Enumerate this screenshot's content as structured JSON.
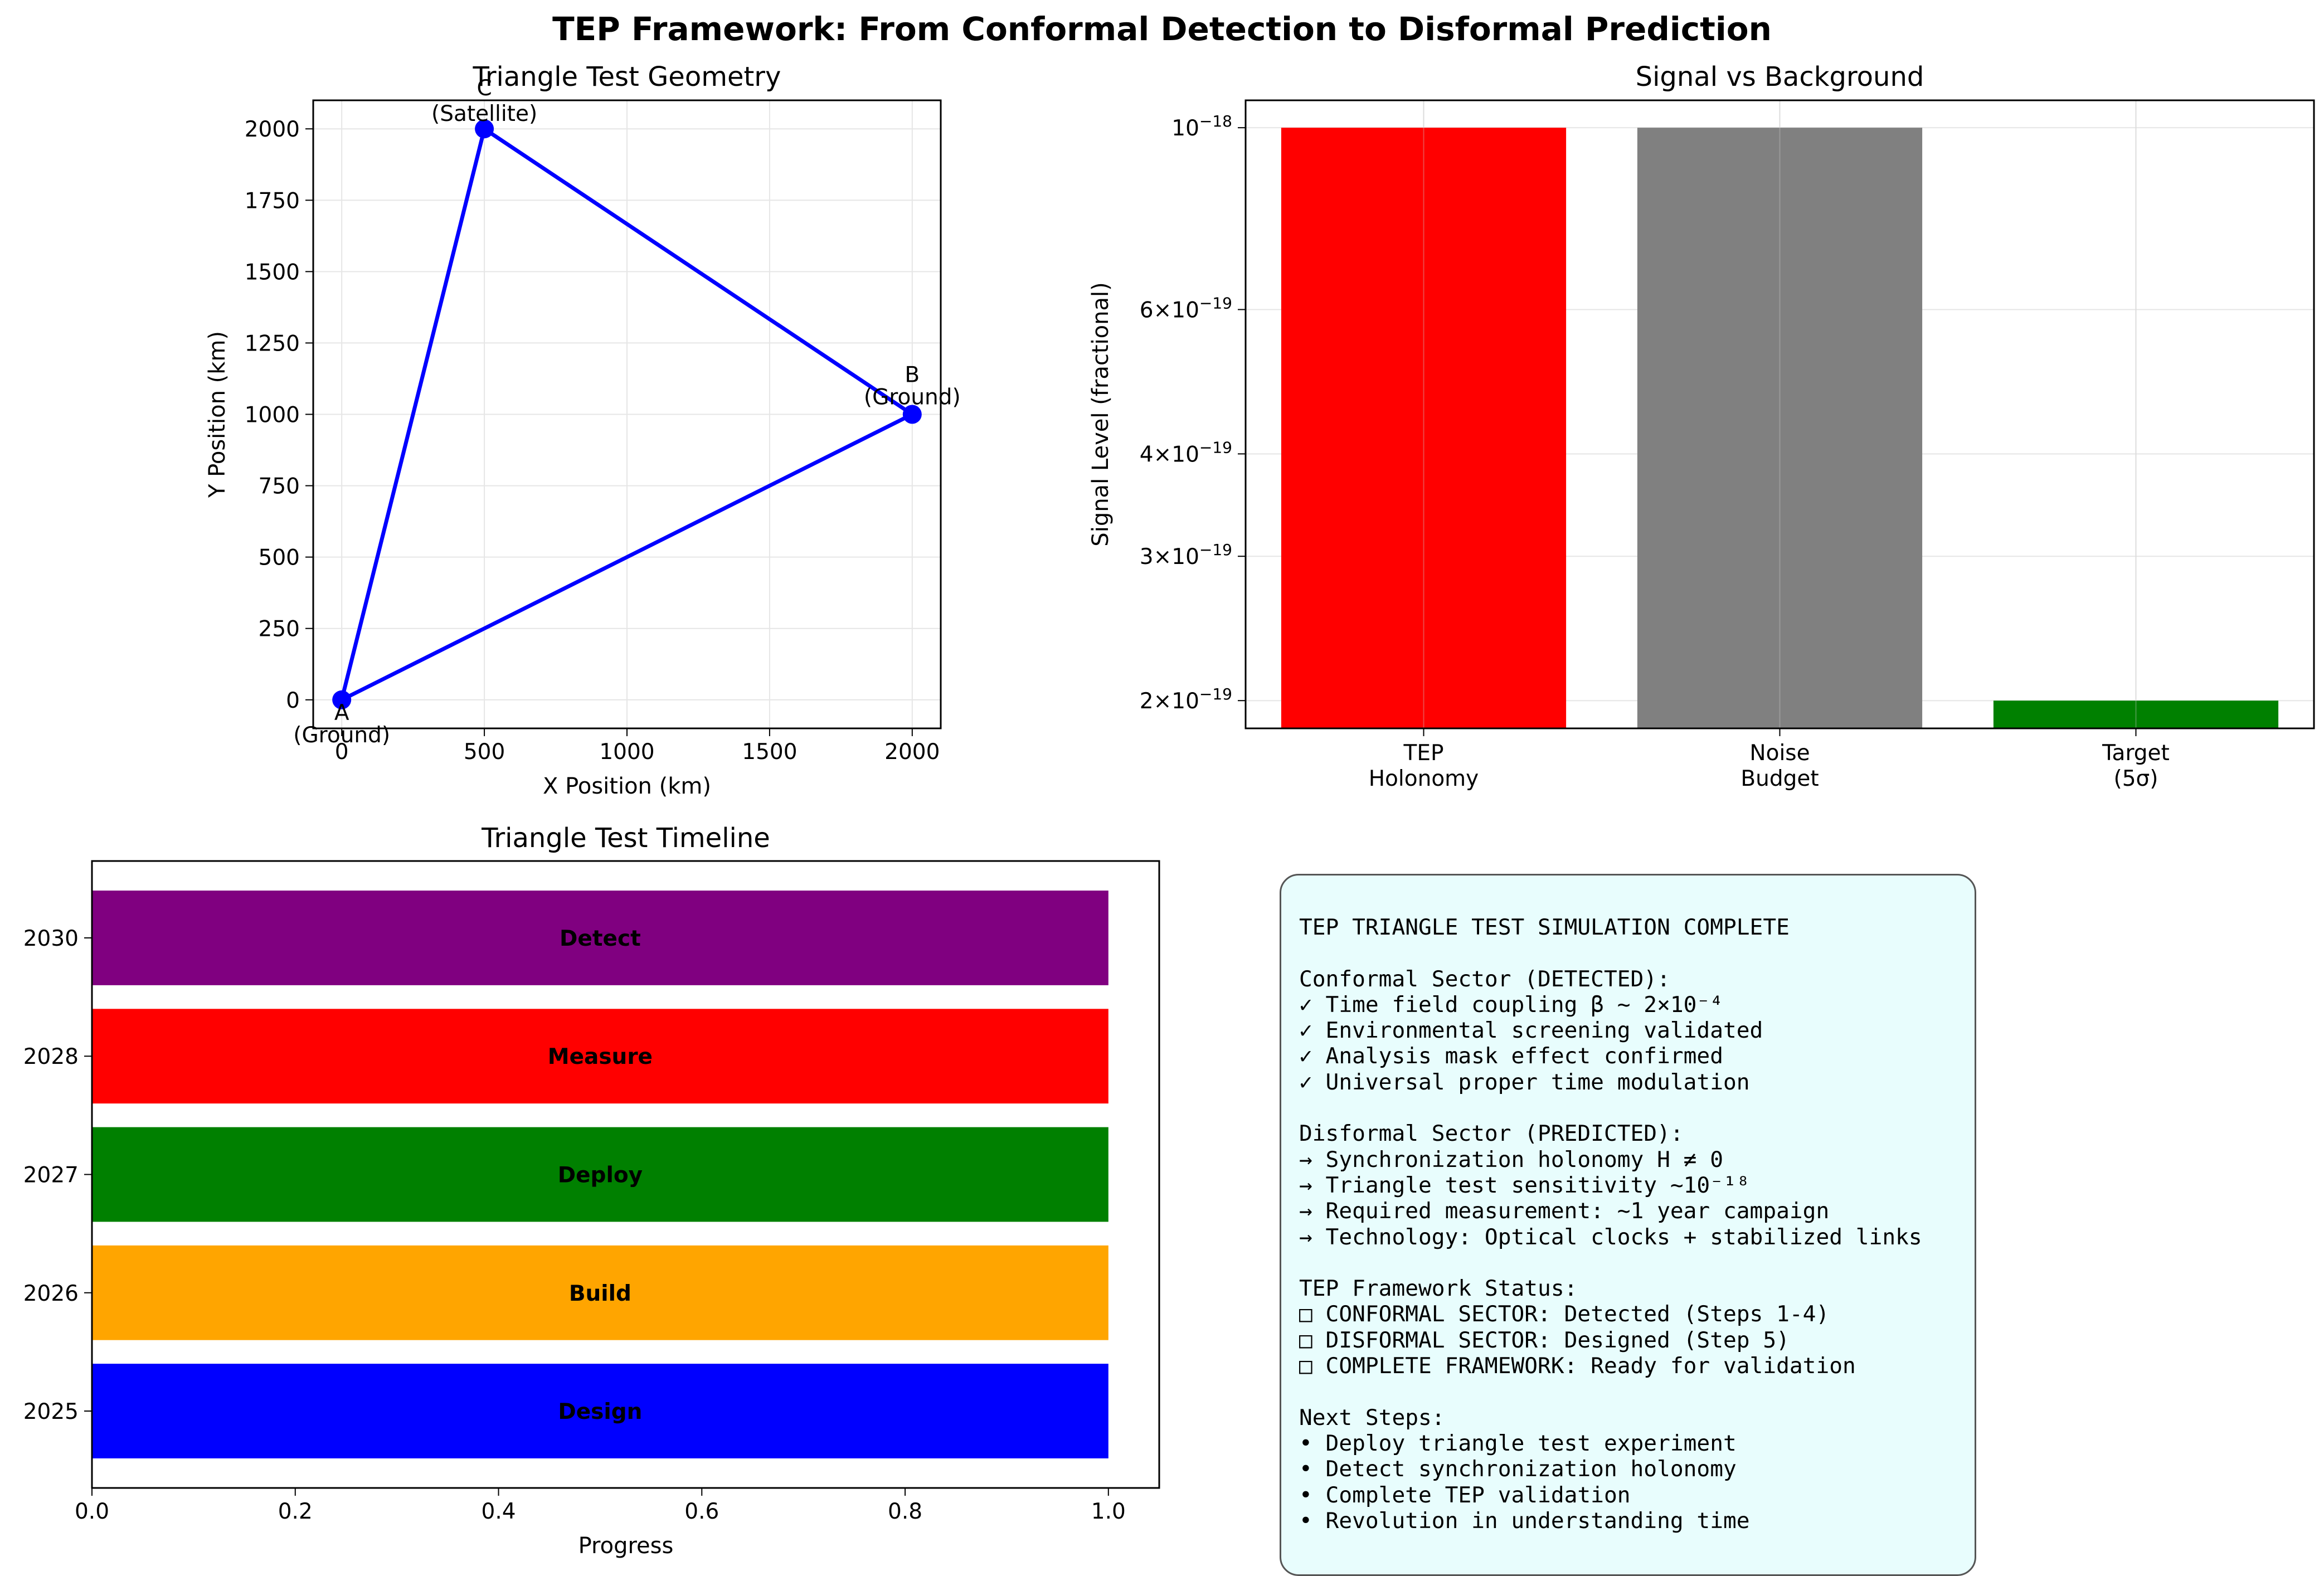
{
  "figure_title": "TEP Framework: From Conformal Detection to Disformal Prediction",
  "chart_data": [
    {
      "type": "scatter",
      "title": "Triangle Test Geometry",
      "xlabel": "X Position (km)",
      "ylabel": "Y Position (km)",
      "xlim": [
        -100,
        2100
      ],
      "ylim": [
        -100,
        2100
      ],
      "xticks": [
        "0",
        "500",
        "1000",
        "1500",
        "2000"
      ],
      "xtick_values": [
        0,
        500,
        1000,
        1500,
        2000
      ],
      "yticks": [
        "0",
        "250",
        "500",
        "750",
        "1000",
        "1250",
        "1500",
        "1750",
        "2000"
      ],
      "ytick_values": [
        0,
        250,
        500,
        750,
        1000,
        1250,
        1500,
        1750,
        2000
      ],
      "grid": true,
      "line_color": "#0000ff",
      "points": [
        {
          "x": 0,
          "y": 0,
          "label": "A",
          "sub": "(Ground)"
        },
        {
          "x": 2000,
          "y": 1000,
          "label": "B",
          "sub": "(Ground)"
        },
        {
          "x": 500,
          "y": 2000,
          "label": "C",
          "sub": "(Satellite)"
        }
      ]
    },
    {
      "type": "bar",
      "title": "Signal vs Background",
      "ylabel": "Signal Level (fractional)",
      "yscale": "log",
      "ylim": [
        1.85e-19,
        1.08e-18
      ],
      "grid": true,
      "yticks": [
        {
          "value": 1e-18,
          "mant": "",
          "exp": "−18"
        },
        {
          "value": 6e-19,
          "mant": "6",
          "exp": "−19"
        },
        {
          "value": 4e-19,
          "mant": "4",
          "exp": "−19"
        },
        {
          "value": 3e-19,
          "mant": "3",
          "exp": "−19"
        },
        {
          "value": 2e-19,
          "mant": "2",
          "exp": "−19"
        }
      ],
      "categories": [
        [
          "TEP",
          "Holonomy"
        ],
        [
          "Noise",
          "Budget"
        ],
        [
          "Target",
          "(5σ)"
        ]
      ],
      "values": [
        1e-18,
        1e-18,
        2e-19
      ],
      "colors": [
        "#ff0000",
        "#808080",
        "#008000"
      ]
    },
    {
      "type": "bar",
      "orientation": "horizontal",
      "title": "Triangle Test Timeline",
      "xlabel": "Progress",
      "xlim": [
        0,
        1.05
      ],
      "xticks": [
        "0.0",
        "0.2",
        "0.4",
        "0.6",
        "0.8",
        "1.0"
      ],
      "xtick_values": [
        0,
        0.2,
        0.4,
        0.6,
        0.8,
        1.0
      ],
      "categories": [
        "2025",
        "2026",
        "2027",
        "2028",
        "2030"
      ],
      "labels": [
        "Design",
        "Build",
        "Deploy",
        "Measure",
        "Detect"
      ],
      "values": [
        1,
        1,
        1,
        1,
        1
      ],
      "colors": [
        "#0000ff",
        "#ffa500",
        "#008000",
        "#ff0000",
        "#800080"
      ]
    }
  ],
  "status_box": {
    "lines": [
      "TEP TRIANGLE TEST SIMULATION COMPLETE",
      "",
      "Conformal Sector (DETECTED):",
      "✓ Time field coupling β ~ 2×10⁻⁴",
      "✓ Environmental screening validated",
      "✓ Analysis mask effect confirmed",
      "✓ Universal proper time modulation",
      "",
      "Disformal Sector (PREDICTED):",
      "→ Synchronization holonomy H ≠ 0",
      "→ Triangle test sensitivity ~10⁻¹⁸",
      "→ Required measurement: ~1 year campaign",
      "→ Technology: Optical clocks + stabilized links",
      "",
      "TEP Framework Status:",
      "□ CONFORMAL SECTOR: Detected (Steps 1-4)",
      "□ DISFORMAL SECTOR: Designed (Step 5)",
      "□ COMPLETE FRAMEWORK: Ready for validation",
      "",
      "Next Steps:",
      "• Deploy triangle test experiment",
      "• Detect synchronization holonomy",
      "• Complete TEP validation",
      "• Revolution in understanding time"
    ],
    "background": "#e8fdfd"
  }
}
